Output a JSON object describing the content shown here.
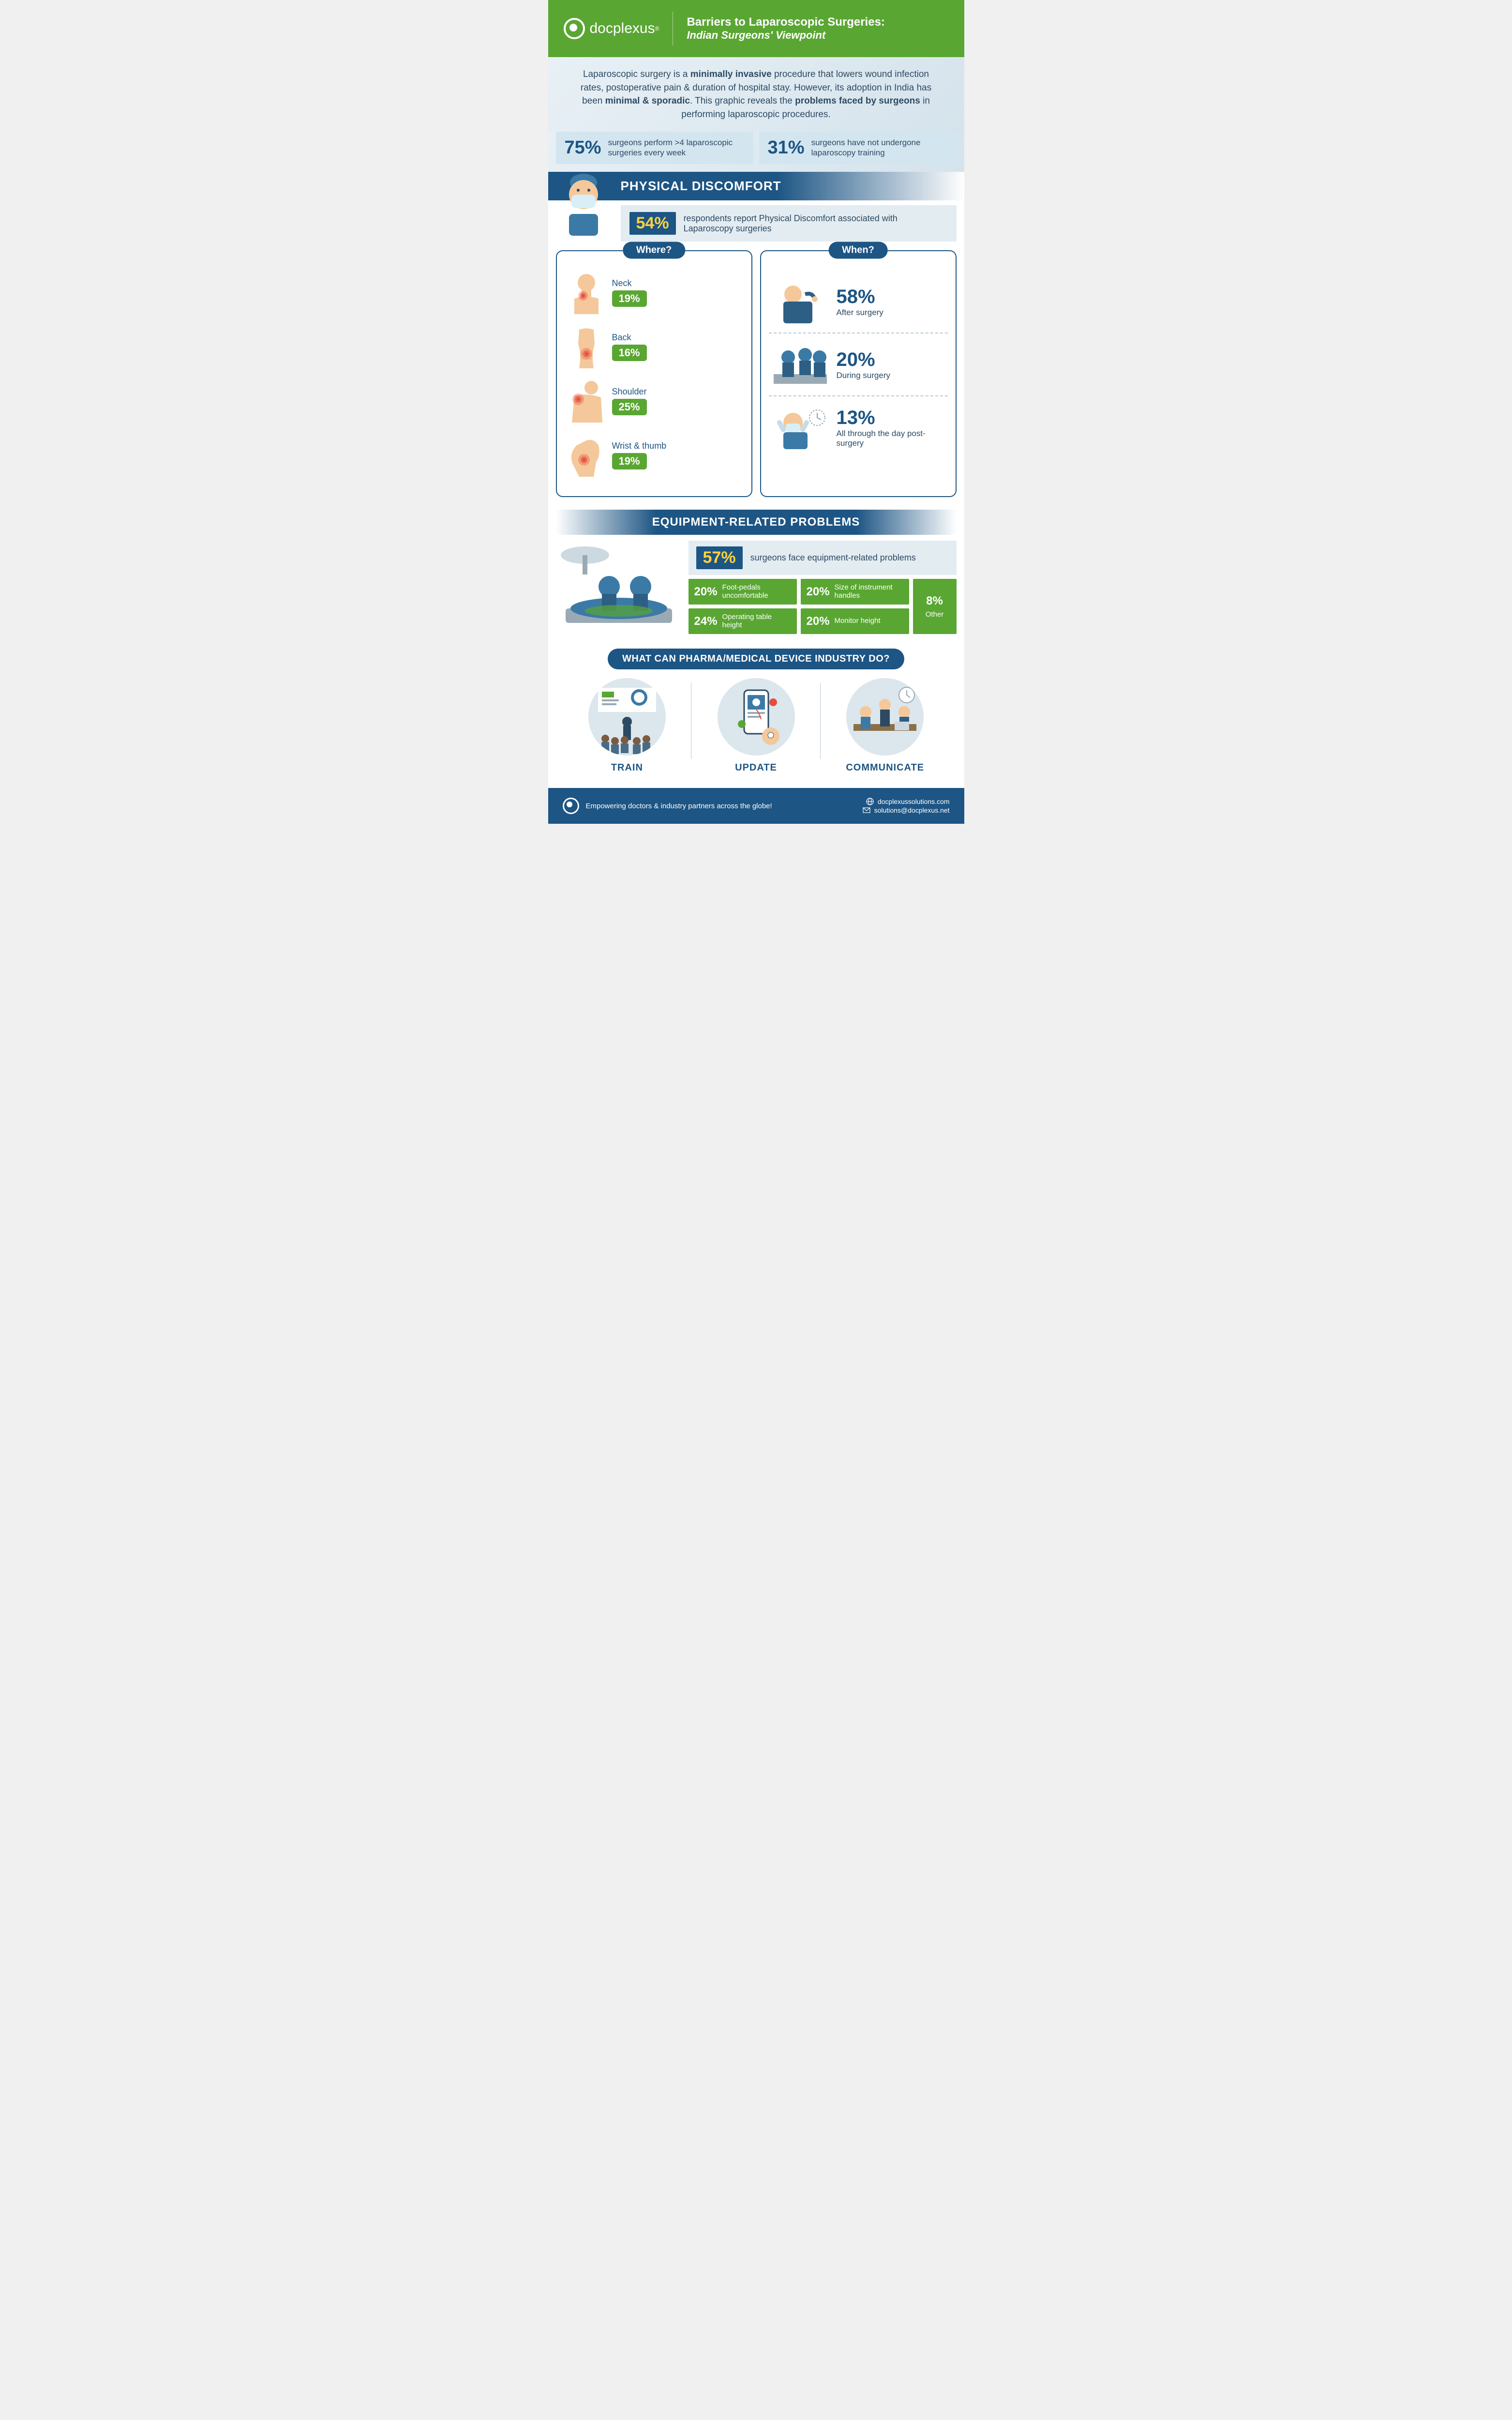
{
  "brand": {
    "name": "docplexus",
    "tm": "®"
  },
  "header": {
    "title": "Barriers to Laparoscopic Surgeries:",
    "subtitle": "Indian Surgeons' Viewpoint"
  },
  "intro": {
    "parts": [
      {
        "t": "Laparoscopic surgery is a ",
        "b": false
      },
      {
        "t": "minimally invasive",
        "b": true
      },
      {
        "t": " procedure that lowers wound infection rates, postoperative pain & duration of hospital stay. However, its adoption in India has been ",
        "b": false
      },
      {
        "t": "minimal & sporadic",
        "b": true
      },
      {
        "t": ". This graphic reveals the ",
        "b": false
      },
      {
        "t": "problems faced by surgeons",
        "b": true
      },
      {
        "t": " in performing laparoscopic procedures.",
        "b": false
      }
    ]
  },
  "top_stats": [
    {
      "pct": "75%",
      "text": "surgeons perform >4 laparoscopic surgeries every week"
    },
    {
      "pct": "31%",
      "text": "surgeons have not undergone laparoscopy training"
    }
  ],
  "discomfort": {
    "band": "PHYSICAL DISCOMFORT",
    "sub_pct": "54%",
    "sub_text": "respondents report Physical Discomfort associated with Laparoscopy surgeries",
    "where_title": "Where?",
    "where": [
      {
        "name": "Neck",
        "pct": "19%"
      },
      {
        "name": "Back",
        "pct": "16%"
      },
      {
        "name": "Shoulder",
        "pct": "25%"
      },
      {
        "name": "Wrist & thumb",
        "pct": "19%"
      }
    ],
    "when_title": "When?",
    "when": [
      {
        "pct": "58%",
        "label": "After surgery"
      },
      {
        "pct": "20%",
        "label": "During surgery"
      },
      {
        "pct": "13%",
        "label": "All through the day post-surgery"
      }
    ]
  },
  "equipment": {
    "band": "EQUIPMENT-RELATED PROBLEMS",
    "head_pct": "57%",
    "head_text": "surgeons face equipment-related problems",
    "items": [
      {
        "pct": "20%",
        "text": "Foot-pedals uncomfortable"
      },
      {
        "pct": "20%",
        "text": "Size of instrument handles"
      },
      {
        "pct": "24%",
        "text": "Operating table height"
      },
      {
        "pct": "20%",
        "text": "Monitor height"
      }
    ],
    "other": {
      "pct": "8%",
      "text": "Other"
    }
  },
  "industry": {
    "band": "WHAT CAN PHARMA/MEDICAL DEVICE INDUSTRY DO?",
    "actions": [
      "TRAIN",
      "UPDATE",
      "COMMUNICATE"
    ]
  },
  "footer": {
    "tagline": "Empowering doctors & industry partners across the globe!",
    "site": "docplexussolutions.com",
    "email": "solutions@docplexus.net"
  },
  "colors": {
    "green": "#5aa633",
    "blue": "#1d5584",
    "yellow": "#ffd23f",
    "text": "#2d4a63",
    "panel_bg": "#e3ecf1"
  }
}
